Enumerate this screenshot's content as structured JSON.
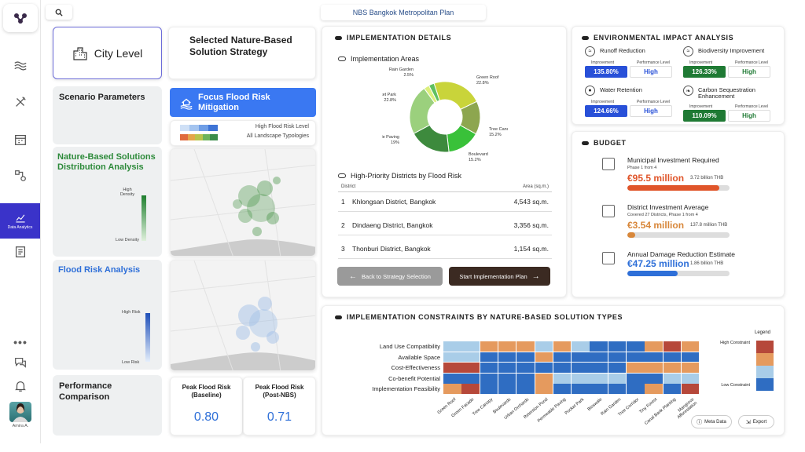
{
  "app": {
    "title": "NBS Bangkok Metropolitan Plan"
  },
  "nav": {
    "items": [
      {
        "name": "waves"
      },
      {
        "name": "tools"
      },
      {
        "name": "calendar"
      },
      {
        "name": "routes"
      },
      {
        "name": "data-analytics",
        "label": "Data Analytics"
      },
      {
        "name": "report"
      },
      {
        "name": "more"
      },
      {
        "name": "chat"
      },
      {
        "name": "bell"
      }
    ],
    "user": "Amira A."
  },
  "left": {
    "city_level": "City Level",
    "selected_title": "Selected Nature-Based Solution Strategy",
    "scenario": "Scenario Parameters",
    "focus_label": "Focus Flood Risk Mitigation",
    "legend_high": "High Flood Risk Level",
    "legend_all": "All Landscape Typologies",
    "nbs_title": "Nature-Based Solutions Distribution Analysis",
    "nbs_high": "High Density",
    "nbs_low": "Low Density",
    "flood_title": "Flood Risk Analysis",
    "flood_high": "High Risk",
    "flood_low": "Low Risk",
    "perf_title": "Performance Comparison",
    "peak_base_label": "Peak Flood Risk (Baseline)",
    "peak_base_value": "0.80",
    "peak_post_label": "Peak Flood Risk (Post-NBS)",
    "peak_post_value": "0.71"
  },
  "implementation": {
    "header": "IMPLEMENTATION DETAILS",
    "areas_title": "Implementation Areas",
    "chart_data": {
      "type": "pie",
      "donut": true,
      "slices": [
        {
          "label": "Green Roof",
          "value": 22.8,
          "pct": "22.8%",
          "color": "#c9d43a"
        },
        {
          "label": "Tree Canopy",
          "value": 15.2,
          "pct": "15.2%",
          "color": "#8da64f"
        },
        {
          "label": "Boulevard",
          "value": 15.2,
          "pct": "15.2%",
          "color": "#39c139"
        },
        {
          "label": "Permeable Paving",
          "value": 19,
          "pct": "19%",
          "color": "#3d8a3d"
        },
        {
          "label": "Pocket Park",
          "value": 22.8,
          "pct": "22.8%",
          "color": "#9bd07d"
        },
        {
          "label": "Rain Garden",
          "value": 2.5,
          "pct": "2.5%",
          "color": "#dcef7c"
        },
        {
          "label": "",
          "value": 2.5,
          "pct": "",
          "color": "#60c060"
        }
      ]
    },
    "districts_title": "High-Priority Districts by Flood Risk",
    "col_district": "District",
    "col_area": "Area (sq.m.)",
    "rows": [
      {
        "n": "1",
        "district": "Khlongsan District, Bangkok",
        "area": "4,543 sq.m."
      },
      {
        "n": "2",
        "district": "Dindaeng District, Bangkok",
        "area": "3,356 sq.m."
      },
      {
        "n": "3",
        "district": "Thonburi District, Bangkok",
        "area": "1,154 sq.m."
      }
    ],
    "back_btn": "Back to Strategy Selection",
    "start_btn": "Start Implementation Plan"
  },
  "env": {
    "header": "ENVIRONMENTAL IMPACT ANALYSIS",
    "improvement_label": "Improvement",
    "perf_label": "Performance Level",
    "items": [
      {
        "title": "Runoff Reduction",
        "value": "135.80%",
        "level": "High",
        "color": "#2850d8"
      },
      {
        "title": "Biodiversity Improvement",
        "value": "126.33%",
        "level": "High",
        "color": "#1f7a34"
      },
      {
        "title": "Water Retention",
        "value": "124.66%",
        "level": "High",
        "color": "#2850d8"
      },
      {
        "title": "Carbon Sequestration Enhancement",
        "value": "110.09%",
        "level": "High",
        "color": "#1f7a34"
      }
    ]
  },
  "budget": {
    "header": "BUDGET",
    "items": [
      {
        "title": "Municipal Investment Required",
        "sub": "Phase 1 from 4",
        "value": "€95.5 million",
        "extra": "3.72 billion THB",
        "color": "#e0552a",
        "fill": 0.9
      },
      {
        "title": "District Investment Average",
        "sub": "Covered 27 Districts, Phase 1 from 4",
        "value": "€3.54 million",
        "extra": "137.8 million THB",
        "color": "#d8873a",
        "fill": 0.08
      },
      {
        "title": "Annual Damage Reduction Estimate",
        "sub": "",
        "value": "€47.25 million",
        "extra": "1.86 billion THB",
        "color": "#2e6fd8",
        "fill": 0.49
      }
    ]
  },
  "constraints": {
    "header": "IMPLEMENTATION CONSTRAINTS BY NATURE-BASED SOLUTION TYPES",
    "rows": [
      "Land Use Compatibility",
      "Available Space",
      "Cost-Effectiveness",
      "Co-benefit Potential",
      "Implementation Feasibility"
    ],
    "cols": [
      "Green Roof",
      "Green Facade",
      "Tree Canopy",
      "Boulevards",
      "Urban Orchards",
      "Retention Pond",
      "Permeable Paving",
      "Pocket Park",
      "Bioswale",
      "Rain Garden",
      "Tree Corridor",
      "Tiny Forest",
      "Canal Bank Planting",
      "Mangrove Afforestation"
    ],
    "legend_title": "Legend",
    "legend_high": "High Constraint",
    "legend_low": "Low Constraint",
    "meta_btn": "Meta Data",
    "export_btn": "Export",
    "colors": [
      "#2f6dc2",
      "#a9cde8",
      "#e59a5e",
      "#b6483a"
    ],
    "chart_data": {
      "type": "heatmap",
      "scale": "0 = low constraint, 3 = high constraint",
      "values": [
        [
          1,
          1,
          2,
          2,
          2,
          1,
          2,
          1,
          0,
          0,
          0,
          2,
          3,
          2
        ],
        [
          1,
          1,
          0,
          0,
          0,
          2,
          0,
          0,
          0,
          0,
          0,
          0,
          0,
          0
        ],
        [
          3,
          3,
          0,
          0,
          0,
          0,
          0,
          0,
          0,
          0,
          2,
          2,
          2,
          2
        ],
        [
          0,
          0,
          0,
          0,
          0,
          2,
          1,
          1,
          1,
          1,
          0,
          0,
          1,
          1
        ],
        [
          2,
          3,
          0,
          0,
          0,
          2,
          0,
          0,
          0,
          0,
          0,
          2,
          0,
          3
        ]
      ]
    }
  }
}
